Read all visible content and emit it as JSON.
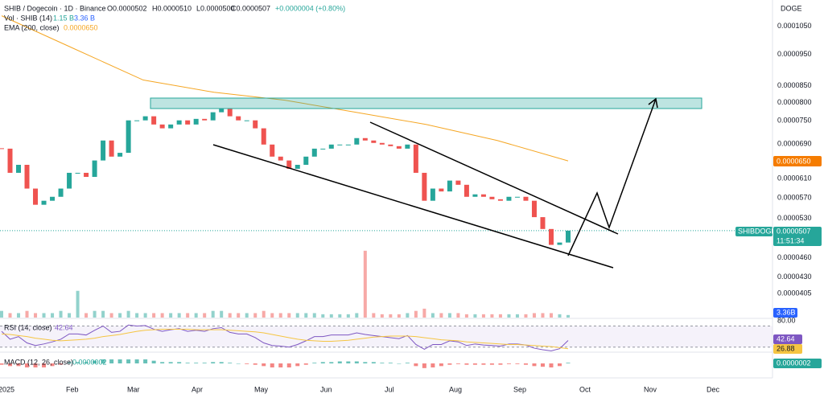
{
  "header": {
    "title": "SHIB / Dogecoin · 1D · Binance",
    "open": "O0.0000502",
    "high": "H0.0000510",
    "low": "L0.0000500",
    "close": "C0.0000507",
    "change": "+0.0000004 (+0.80%)",
    "quote": "DOGE"
  },
  "chart_data": {
    "type": "candlestick",
    "log_scale": true,
    "up_color": "#26a69a",
    "down_color": "#ef5350",
    "close": [
      6.79e-05,
      6.23e-05,
      6.41e-05,
      5.89e-05,
      5.56e-05,
      5.64e-05,
      5.72e-05,
      5.89e-05,
      6.23e-05,
      6.23e-05,
      6.14e-05,
      6.51e-05,
      6.99e-05,
      6.6e-05,
      6.69e-05,
      7.51e-05,
      7.51e-05,
      7.62e-05,
      7.4e-05,
      7.3e-05,
      7.4e-05,
      7.51e-05,
      7.4e-05,
      7.55e-05,
      7.51e-05,
      7.73e-05,
      7.84e-05,
      7.62e-05,
      7.51e-05,
      7.51e-05,
      7.3e-05,
      6.89e-05,
      6.6e-05,
      6.51e-05,
      6.32e-05,
      6.41e-05,
      6.6e-05,
      6.79e-05,
      6.79e-05,
      6.89e-05,
      6.89e-05,
      6.89e-05,
      7.05e-05,
      6.99e-05,
      6.93e-05,
      6.89e-05,
      6.85e-05,
      6.79e-05,
      6.89e-05,
      6.23e-05,
      5.64e-05,
      5.89e-05,
      5.83e-05,
      6.06e-05,
      5.97e-05,
      5.72e-05,
      5.77e-05,
      5.72e-05,
      5.67e-05,
      5.64e-05,
      5.72e-05,
      5.72e-05,
      5.64e-05,
      5.32e-05,
      5.1e-05,
      4.82e-05,
      4.86e-05,
      5.07e-05
    ],
    "ylim": [
      3.72e-05,
      0.0001153
    ],
    "yticks": [
      {
        "value": 0.000105,
        "label": "0.0001050"
      },
      {
        "value": 9.5e-05,
        "label": "0.0000950"
      },
      {
        "value": 8.5e-05,
        "label": "0.0000850"
      },
      {
        "value": 8e-05,
        "label": "0.0000800"
      },
      {
        "value": 7.5e-05,
        "label": "0.0000750"
      },
      {
        "value": 6.9e-05,
        "label": "0.0000690"
      },
      {
        "value": 6.1e-05,
        "label": "0.0000610"
      },
      {
        "value": 5.7e-05,
        "label": "0.0000570"
      },
      {
        "value": 5.3e-05,
        "label": "0.0000530"
      },
      {
        "value": 4.6e-05,
        "label": "0.0000460"
      },
      {
        "value": 4.3e-05,
        "label": "0.0000430"
      },
      {
        "value": 4.05e-05,
        "label": "0.0000405"
      }
    ],
    "x_labels": [
      "2025",
      "Feb",
      "Mar",
      "Apr",
      "May",
      "Jun",
      "Jul",
      "Aug",
      "Sep",
      "Oct",
      "Nov",
      "Dec"
    ],
    "ema": {
      "name": "EMA (200, close)",
      "color": "#f5a623",
      "values": [
        0.000109,
        9.72e-05,
        8.67e-05,
        8.3e-05,
        8.07e-05,
        7.73e-05,
        7.4e-05,
        6.99e-05,
        6.5e-05
      ],
      "badge": "0.0000650"
    },
    "price_badge": {
      "symbol": "SHIBDOGE",
      "price": "0.0000507",
      "countdown": "11:51:34"
    },
    "volume": {
      "name": "Vol · SHIB (14)",
      "value": "1.15 B",
      "ma": "3.36 B",
      "badge": "3.36B",
      "ylim": [
        0,
        35
      ],
      "values": [
        3,
        2,
        2,
        3,
        2,
        2,
        2,
        3,
        2,
        12,
        2,
        3,
        3,
        2,
        2,
        3,
        2,
        2,
        2,
        2,
        2,
        2,
        2,
        2,
        2,
        3,
        3,
        2,
        2,
        2,
        2,
        3,
        2,
        2,
        2,
        2,
        2,
        2,
        1.5,
        1.5,
        1.5,
        1.5,
        2,
        30,
        2,
        1.5,
        1.5,
        1.5,
        2,
        3,
        4,
        2,
        2,
        2,
        2,
        1.5,
        1.5,
        1.5,
        1.5,
        1.5,
        1.5,
        1.5,
        1.5,
        2,
        2,
        2,
        1.5,
        1.15
      ]
    },
    "rsi": {
      "name": "RSI (14, close)",
      "color": "#7e57c2",
      "ma_color": "#f5c542",
      "ylim": [
        22,
        83
      ],
      "levels": [
        30,
        70
      ],
      "yticks": [
        {
          "value": 80,
          "label": "80.00"
        }
      ],
      "values": [
        60,
        45,
        50,
        38,
        33,
        36,
        40,
        45,
        55,
        55,
        53,
        62,
        70,
        58,
        60,
        72,
        70,
        71,
        64,
        60,
        63,
        65,
        60,
        62,
        60,
        65,
        67,
        58,
        55,
        55,
        48,
        38,
        33,
        32,
        30,
        35,
        42,
        50,
        50,
        53,
        53,
        53,
        57,
        54,
        52,
        50,
        48,
        46,
        52,
        35,
        26,
        35,
        35,
        42,
        40,
        33,
        36,
        34,
        33,
        32,
        36,
        36,
        34,
        28,
        25,
        23,
        27,
        42.64
      ],
      "ma": [
        55,
        54,
        52,
        50,
        47,
        45,
        43,
        42,
        43,
        44,
        45,
        47,
        50,
        52,
        54,
        57,
        60,
        62,
        63,
        64,
        64,
        64,
        64,
        63,
        63,
        63,
        63,
        62,
        61,
        60,
        59,
        57,
        54,
        51,
        48,
        45,
        43,
        42,
        41,
        41,
        42,
        43,
        45,
        47,
        49,
        50,
        51,
        51,
        51,
        50,
        48,
        46,
        44,
        43,
        42,
        40,
        39,
        38,
        37,
        36,
        35,
        35,
        34,
        33,
        32,
        31,
        29,
        26.88
      ]
    },
    "macd": {
      "name": "MACD (12, 26, close)",
      "value": "0.0000002",
      "ylim": [
        -6e-07,
        6e-07
      ],
      "hist": [
        -1e-07,
        -2e-07,
        -2e-07,
        -3e-07,
        -3e-07,
        -3e-07,
        -2e-07,
        -1e-07,
        1e-07,
        1e-07,
        1e-07,
        2e-07,
        3e-07,
        3e-07,
        3e-07,
        3e-07,
        3e-07,
        3e-07,
        2e-07,
        1e-07,
        1e-07,
        1e-07,
        5e-08,
        5e-08,
        5e-08,
        1e-07,
        1e-07,
        5e-08,
        0,
        -5e-08,
        -1e-07,
        -2e-07,
        -3e-07,
        -3e-07,
        -3e-07,
        -2e-07,
        -1e-07,
        5e-08,
        1e-07,
        1e-07,
        1.5e-07,
        1.5e-07,
        1.5e-07,
        1e-07,
        1e-07,
        5e-08,
        5e-08,
        0,
        5e-08,
        -2e-07,
        -3.5e-07,
        -3e-07,
        -2e-07,
        -1e-07,
        -5e-08,
        -1e-07,
        -1e-07,
        -1e-07,
        -1e-07,
        -1e-07,
        -5e-08,
        -5e-08,
        -1e-07,
        -2e-07,
        -2.5e-07,
        -3e-07,
        -2e-07,
        5e-08
      ]
    }
  }
}
